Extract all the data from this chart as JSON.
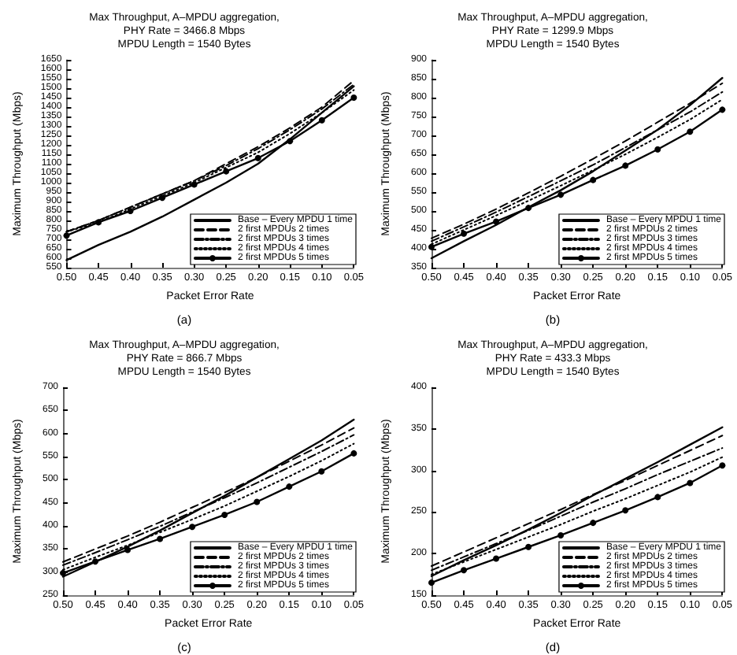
{
  "chart_data": [
    {
      "type": "line",
      "title": "Max Throughput, A–MPDU aggregation,\nPHY Rate = 3466.8 Mbps\nMPDU Length = 1540 Bytes",
      "xlabel": "Packet Error Rate",
      "ylabel": "Maximum Throughput (Mbps)",
      "annotations": [
        "(a)"
      ],
      "x": [
        0.5,
        0.45,
        0.4,
        0.35,
        0.3,
        0.25,
        0.2,
        0.15,
        0.1,
        0.05
      ],
      "xlim": [
        0.5,
        0.05
      ],
      "xticks": [
        {
          "value": 0.5,
          "label": "0.50"
        },
        0.45,
        {
          "value": 0.4,
          "label": "0.40"
        },
        0.35,
        {
          "value": 0.3,
          "label": "0.30"
        },
        0.25,
        {
          "value": 0.2,
          "label": "0.20"
        },
        0.15,
        {
          "value": 0.1,
          "label": "0.10"
        },
        0.05
      ],
      "ylim": [
        550,
        1650
      ],
      "yticks": [
        550,
        600,
        650,
        700,
        750,
        800,
        850,
        900,
        950,
        1000,
        1050,
        1100,
        1150,
        1200,
        1250,
        1300,
        1350,
        1400,
        1450,
        1500,
        1550,
        1600,
        1650
      ],
      "grid": false,
      "legend": "bottom right",
      "marker": "none",
      "series": [
        {
          "name": "Base – Every MPDU 1 time",
          "color": "#000000",
          "line_style": "solid",
          "values": [
            590,
            670,
            740,
            820,
            910,
            1000,
            1100,
            1230,
            1370,
            1510
          ]
        },
        {
          "name": "2 first MPDUs 2 times",
          "color": "#000000",
          "line_style": "dashed",
          "values": [
            740,
            800,
            870,
            940,
            1010,
            1100,
            1190,
            1290,
            1400,
            1540
          ]
        },
        {
          "name": "2 first MPDUs 3 times",
          "color": "#000000",
          "line_style": "dashdot",
          "values": [
            740,
            800,
            870,
            940,
            1010,
            1090,
            1180,
            1280,
            1390,
            1520
          ]
        },
        {
          "name": "2 first MPDUs 4 times",
          "color": "#000000",
          "line_style": "dotted",
          "values": [
            740,
            790,
            860,
            930,
            1000,
            1080,
            1160,
            1260,
            1370,
            1490
          ]
        },
        {
          "name": "2 first MPDUs 5 times",
          "color": "#000000",
          "line_style": "solid",
          "marker": "circle",
          "values": [
            720,
            790,
            850,
            920,
            990,
            1060,
            1130,
            1220,
            1330,
            1450
          ]
        }
      ]
    },
    {
      "type": "line",
      "title": "Max Throughput, A–MPDU aggregation,\nPHY Rate = 1299.9 Mbps\nMPDU Length = 1540 Bytes",
      "xlabel": "Packet Error Rate",
      "ylabel": "Maximum Throughput (Mbps)",
      "annotations": [
        "(b)"
      ],
      "x": [
        0.5,
        0.45,
        0.4,
        0.35,
        0.3,
        0.25,
        0.2,
        0.15,
        0.1,
        0.05
      ],
      "xlim": [
        0.5,
        0.05
      ],
      "xticks": [
        {
          "value": 0.5,
          "label": "0.50"
        },
        0.45,
        {
          "value": 0.4,
          "label": "0.40"
        },
        0.35,
        {
          "value": 0.3,
          "label": "0.30"
        },
        0.25,
        {
          "value": 0.2,
          "label": "0.20"
        },
        0.15,
        {
          "value": 0.1,
          "label": "0.10"
        },
        0.05
      ],
      "ylim": [
        350,
        900
      ],
      "yticks": [
        350,
        400,
        450,
        500,
        550,
        600,
        650,
        700,
        750,
        800,
        850,
        900
      ],
      "grid": false,
      "legend": "bottom right",
      "marker": "none",
      "series": [
        {
          "name": "Base – Every MPDU 1 time",
          "color": "#000000",
          "line_style": "solid",
          "values": [
            375,
            420,
            463,
            510,
            555,
            605,
            660,
            715,
            780,
            852
          ]
        },
        {
          "name": "2 first MPDUs 2 times",
          "color": "#000000",
          "line_style": "dashed",
          "values": [
            428,
            465,
            505,
            548,
            592,
            638,
            685,
            735,
            785,
            838
          ]
        },
        {
          "name": "2 first MPDUs 3 times",
          "color": "#000000",
          "line_style": "dashdot",
          "values": [
            420,
            458,
            497,
            538,
            580,
            622,
            668,
            715,
            762,
            815
          ]
        },
        {
          "name": "2 first MPDUs 4 times",
          "color": "#000000",
          "line_style": "dotted",
          "values": [
            412,
            450,
            488,
            527,
            567,
            608,
            650,
            695,
            742,
            795
          ]
        },
        {
          "name": "2 first MPDUs 5 times",
          "color": "#000000",
          "line_style": "solid",
          "marker": "circle",
          "values": [
            405,
            440,
            472,
            508,
            543,
            582,
            620,
            663,
            710,
            768
          ]
        }
      ]
    },
    {
      "type": "line",
      "title": "Max Throughput, A–MPDU aggregation,\nPHY Rate = 866.7 Mbps\nMPDU Length = 1540 Bytes",
      "xlabel": "Packet Error Rate",
      "ylabel": "Maximum Throughput (Mbps)",
      "annotations": [
        "(c)"
      ],
      "x": [
        0.5,
        0.45,
        0.4,
        0.35,
        0.3,
        0.25,
        0.2,
        0.15,
        0.1,
        0.05
      ],
      "xlim": [
        0.5,
        0.05
      ],
      "xticks": [
        {
          "value": 0.5,
          "label": "0.50"
        },
        0.45,
        {
          "value": 0.4,
          "label": "0.40"
        },
        0.35,
        {
          "value": 0.3,
          "label": "0.30"
        },
        0.25,
        {
          "value": 0.2,
          "label": "0.20"
        },
        0.15,
        {
          "value": 0.1,
          "label": "0.10"
        },
        0.05
      ],
      "ylim": [
        250,
        700
      ],
      "yticks": [
        250,
        300,
        350,
        400,
        450,
        500,
        550,
        600,
        650,
        700
      ],
      "grid": false,
      "legend": "bottom right",
      "marker": "none",
      "series": [
        {
          "name": "Base – Every MPDU 1 time",
          "color": "#000000",
          "line_style": "solid",
          "values": [
            290,
            322,
            355,
            390,
            428,
            465,
            505,
            545,
            585,
            630
          ]
        },
        {
          "name": "2 first MPDUs 2 times",
          "color": "#000000",
          "line_style": "dashed",
          "values": [
            322,
            350,
            378,
            408,
            440,
            472,
            505,
            540,
            575,
            612
          ]
        },
        {
          "name": "2 first MPDUs 3 times",
          "color": "#000000",
          "line_style": "dashdot",
          "values": [
            315,
            342,
            370,
            399,
            430,
            461,
            493,
            527,
            561,
            597
          ]
        },
        {
          "name": "2 first MPDUs 4 times",
          "color": "#000000",
          "line_style": "dotted",
          "values": [
            305,
            332,
            358,
            386,
            414,
            443,
            475,
            507,
            541,
            578
          ]
        },
        {
          "name": "2 first MPDUs 5 times",
          "color": "#000000",
          "line_style": "solid",
          "marker": "circle",
          "values": [
            298,
            323,
            348,
            372,
            398,
            424,
            452,
            485,
            518,
            557
          ]
        }
      ]
    },
    {
      "type": "line",
      "title": "Max Throughput, A–MPDU aggregation,\nPHY Rate = 433.3 Mbps\nMPDU Length = 1540 Bytes",
      "xlabel": "Packet Error Rate",
      "ylabel": "Maximum Throughput (Mbps)",
      "annotations": [
        "(d)"
      ],
      "x": [
        0.5,
        0.45,
        0.4,
        0.35,
        0.3,
        0.25,
        0.2,
        0.15,
        0.1,
        0.05
      ],
      "xlim": [
        0.5,
        0.05
      ],
      "xticks": [
        {
          "value": 0.5,
          "label": "0.50"
        },
        0.45,
        {
          "value": 0.4,
          "label": "0.40"
        },
        0.35,
        {
          "value": 0.3,
          "label": "0.30"
        },
        0.25,
        {
          "value": 0.2,
          "label": "0.20"
        },
        0.15,
        {
          "value": 0.1,
          "label": "0.10"
        },
        0.05
      ],
      "ylim": [
        150,
        400
      ],
      "yticks": [
        150,
        200,
        250,
        300,
        350,
        400
      ],
      "grid": false,
      "legend": "bottom right",
      "marker": "none",
      "series": [
        {
          "name": "Base – Every MPDU 1 time",
          "color": "#000000",
          "line_style": "solid",
          "values": [
            173,
            192,
            210,
            229,
            249,
            270,
            290,
            310,
            331,
            352
          ]
        },
        {
          "name": "2 first MPDUs 2 times",
          "color": "#000000",
          "line_style": "dashed",
          "values": [
            185,
            202,
            219,
            236,
            253,
            271,
            288,
            306,
            324,
            342
          ]
        },
        {
          "name": "2 first MPDUs 3 times",
          "color": "#000000",
          "line_style": "dashdot",
          "values": [
            180,
            196,
            212,
            228,
            245,
            262,
            278,
            295,
            311,
            327
          ]
        },
        {
          "name": "2 first MPDUs 4 times",
          "color": "#000000",
          "line_style": "dotted",
          "values": [
            175,
            190,
            205,
            220,
            235,
            251,
            266,
            282,
            298,
            316
          ]
        },
        {
          "name": "2 first MPDUs 5 times",
          "color": "#000000",
          "line_style": "solid",
          "marker": "circle",
          "values": [
            165,
            180,
            194,
            208,
            222,
            237,
            252,
            268,
            285,
            306
          ]
        }
      ]
    }
  ]
}
